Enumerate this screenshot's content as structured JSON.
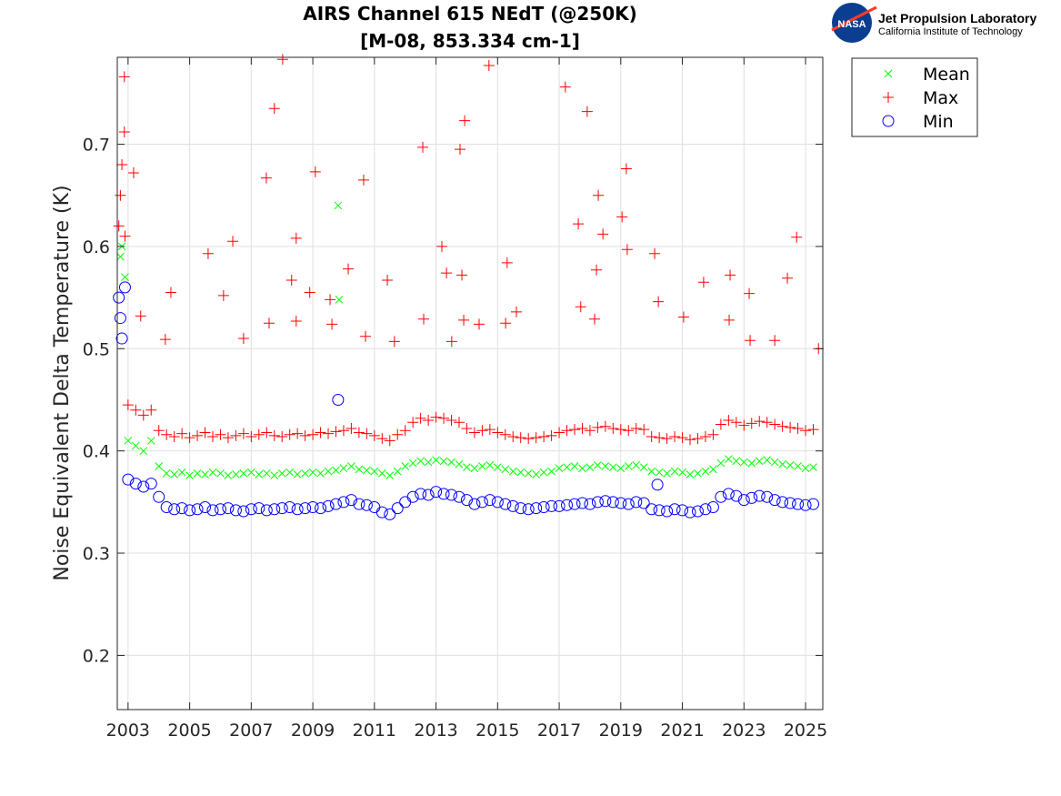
{
  "logo": {
    "org": "Jet Propulsion Laboratory",
    "sub": "California Institute of Technology",
    "badge": "NASA"
  },
  "chart_data": {
    "type": "scatter",
    "title": [
      "AIRS Channel 615 NEdT (@250K)",
      "[M-08, 853.334 cm-1]"
    ],
    "xlabel": "",
    "ylabel": "Noise Equivalent Delta Temperature (K)",
    "xlim": [
      2002.65,
      2025.56
    ],
    "ylim": [
      0.147,
      0.785
    ],
    "xticks": [
      2003,
      2005,
      2007,
      2009,
      2011,
      2013,
      2015,
      2017,
      2019,
      2021,
      2023,
      2025
    ],
    "yticks": [
      0.2,
      0.3,
      0.4,
      0.5,
      0.6,
      0.7
    ],
    "ytick_labels": [
      "0.2",
      "0.3",
      "0.4",
      "0.5",
      "0.6",
      "0.7"
    ],
    "grid": true,
    "legend": "outside-top-right",
    "x": [
      2002.75,
      2003.0,
      2003.25,
      2003.5,
      2003.75,
      2004.0,
      2004.25,
      2004.5,
      2004.75,
      2005.0,
      2005.25,
      2005.5,
      2005.75,
      2006.0,
      2006.25,
      2006.5,
      2006.75,
      2007.0,
      2007.25,
      2007.5,
      2007.75,
      2008.0,
      2008.25,
      2008.5,
      2008.75,
      2009.0,
      2009.25,
      2009.5,
      2009.75,
      2010.0,
      2010.25,
      2010.5,
      2010.75,
      2011.0,
      2011.25,
      2011.5,
      2011.75,
      2012.0,
      2012.25,
      2012.5,
      2012.75,
      2013.0,
      2013.25,
      2013.5,
      2013.75,
      2014.0,
      2014.25,
      2014.5,
      2014.75,
      2015.0,
      2015.25,
      2015.5,
      2015.75,
      2016.0,
      2016.25,
      2016.5,
      2016.75,
      2017.0,
      2017.25,
      2017.5,
      2017.75,
      2018.0,
      2018.25,
      2018.5,
      2018.75,
      2019.0,
      2019.25,
      2019.5,
      2019.75,
      2020.0,
      2020.25,
      2020.5,
      2020.75,
      2021.0,
      2021.25,
      2021.5,
      2021.75,
      2022.0,
      2022.25,
      2022.5,
      2022.75,
      2023.0,
      2023.25,
      2023.5,
      2023.75,
      2024.0,
      2024.25,
      2024.5,
      2024.75,
      2025.0,
      2025.25
    ],
    "series": [
      {
        "name": "Mean",
        "marker": "x",
        "color": "#00ff00",
        "values": [
          0.59,
          0.41,
          0.405,
          0.4,
          0.41,
          0.385,
          0.378,
          0.377,
          0.379,
          0.376,
          0.378,
          0.377,
          0.379,
          0.378,
          0.376,
          0.377,
          0.378,
          0.379,
          0.377,
          0.378,
          0.376,
          0.378,
          0.379,
          0.377,
          0.378,
          0.379,
          0.378,
          0.38,
          0.381,
          0.383,
          0.385,
          0.382,
          0.381,
          0.38,
          0.378,
          0.376,
          0.38,
          0.385,
          0.388,
          0.39,
          0.389,
          0.391,
          0.39,
          0.389,
          0.387,
          0.384,
          0.383,
          0.385,
          0.386,
          0.384,
          0.382,
          0.38,
          0.379,
          0.378,
          0.377,
          0.379,
          0.38,
          0.383,
          0.384,
          0.385,
          0.383,
          0.384,
          0.386,
          0.385,
          0.384,
          0.383,
          0.385,
          0.386,
          0.384,
          0.38,
          0.379,
          0.378,
          0.38,
          0.379,
          0.377,
          0.378,
          0.38,
          0.382,
          0.388,
          0.392,
          0.39,
          0.389,
          0.388,
          0.39,
          0.391,
          0.389,
          0.387,
          0.386,
          0.385,
          0.383,
          0.384
        ],
        "extra_points": [
          [
            2002.8,
            0.6
          ],
          [
            2002.9,
            0.57
          ],
          [
            2009.82,
            0.64
          ],
          [
            2009.85,
            0.548
          ]
        ]
      },
      {
        "name": "Max",
        "marker": "+",
        "color": "#ff0000",
        "values": [
          0.65,
          0.445,
          0.44,
          0.435,
          0.44,
          0.42,
          0.416,
          0.414,
          0.417,
          0.413,
          0.415,
          0.418,
          0.414,
          0.416,
          0.413,
          0.415,
          0.417,
          0.414,
          0.416,
          0.418,
          0.415,
          0.414,
          0.416,
          0.417,
          0.415,
          0.416,
          0.418,
          0.417,
          0.419,
          0.42,
          0.422,
          0.418,
          0.417,
          0.415,
          0.412,
          0.41,
          0.416,
          0.42,
          0.428,
          0.432,
          0.43,
          0.433,
          0.432,
          0.43,
          0.428,
          0.422,
          0.418,
          0.42,
          0.421,
          0.418,
          0.416,
          0.414,
          0.413,
          0.412,
          0.413,
          0.414,
          0.415,
          0.418,
          0.42,
          0.421,
          0.422,
          0.42,
          0.423,
          0.424,
          0.422,
          0.421,
          0.42,
          0.422,
          0.421,
          0.414,
          0.413,
          0.412,
          0.414,
          0.413,
          0.411,
          0.412,
          0.414,
          0.416,
          0.426,
          0.43,
          0.428,
          0.425,
          0.427,
          0.429,
          0.428,
          0.426,
          0.424,
          0.423,
          0.422,
          0.42,
          0.421
        ],
        "extra_points": [
          [
            2002.7,
            0.62
          ],
          [
            2002.8,
            0.68
          ],
          [
            2002.9,
            0.61
          ],
          [
            2002.88,
            0.766
          ],
          [
            2002.88,
            0.712
          ],
          [
            2003.18,
            0.672
          ],
          [
            2003.41,
            0.532
          ],
          [
            2004.39,
            0.555
          ],
          [
            2004.21,
            0.509
          ],
          [
            2005.6,
            0.593
          ],
          [
            2006.1,
            0.552
          ],
          [
            2006.4,
            0.605
          ],
          [
            2006.75,
            0.51
          ],
          [
            2007.49,
            0.667
          ],
          [
            2007.75,
            0.735
          ],
          [
            2008.02,
            0.783
          ],
          [
            2007.58,
            0.525
          ],
          [
            2008.46,
            0.608
          ],
          [
            2008.31,
            0.567
          ],
          [
            2008.46,
            0.527
          ],
          [
            2008.9,
            0.555
          ],
          [
            2009.08,
            0.673
          ],
          [
            2009.56,
            0.548
          ],
          [
            2009.62,
            0.524
          ],
          [
            2010.15,
            0.578
          ],
          [
            2010.65,
            0.665
          ],
          [
            2010.71,
            0.512
          ],
          [
            2011.42,
            0.567
          ],
          [
            2011.65,
            0.507
          ],
          [
            2012.6,
            0.529
          ],
          [
            2012.57,
            0.697
          ],
          [
            2013.19,
            0.6
          ],
          [
            2013.34,
            0.574
          ],
          [
            2013.51,
            0.507
          ],
          [
            2013.78,
            0.695
          ],
          [
            2013.93,
            0.723
          ],
          [
            2013.84,
            0.572
          ],
          [
            2013.9,
            0.528
          ],
          [
            2014.4,
            0.524
          ],
          [
            2014.72,
            0.777
          ],
          [
            2015.31,
            0.584
          ],
          [
            2015.61,
            0.536
          ],
          [
            2015.26,
            0.525
          ],
          [
            2017.2,
            0.756
          ],
          [
            2017.62,
            0.622
          ],
          [
            2017.7,
            0.541
          ],
          [
            2017.91,
            0.732
          ],
          [
            2018.27,
            0.65
          ],
          [
            2018.21,
            0.577
          ],
          [
            2018.42,
            0.612
          ],
          [
            2018.15,
            0.529
          ],
          [
            2019.04,
            0.629
          ],
          [
            2019.18,
            0.676
          ],
          [
            2019.21,
            0.597
          ],
          [
            2020.1,
            0.593
          ],
          [
            2020.22,
            0.546
          ],
          [
            2021.04,
            0.531
          ],
          [
            2021.69,
            0.565
          ],
          [
            2022.55,
            0.572
          ],
          [
            2022.52,
            0.528
          ],
          [
            2023.17,
            0.554
          ],
          [
            2023.2,
            0.508
          ],
          [
            2024.0,
            0.508
          ],
          [
            2024.41,
            0.569
          ],
          [
            2024.71,
            0.609
          ],
          [
            2025.42,
            0.5
          ]
        ]
      },
      {
        "name": "Min",
        "marker": "o",
        "color": "#0000ff",
        "values": [
          0.53,
          0.372,
          0.368,
          0.365,
          0.368,
          0.355,
          0.345,
          0.343,
          0.344,
          0.342,
          0.343,
          0.345,
          0.342,
          0.343,
          0.344,
          0.342,
          0.341,
          0.343,
          0.344,
          0.342,
          0.343,
          0.344,
          0.345,
          0.343,
          0.344,
          0.345,
          0.344,
          0.346,
          0.348,
          0.35,
          0.352,
          0.348,
          0.347,
          0.345,
          0.34,
          0.338,
          0.344,
          0.35,
          0.355,
          0.358,
          0.357,
          0.36,
          0.358,
          0.357,
          0.355,
          0.352,
          0.348,
          0.35,
          0.352,
          0.35,
          0.348,
          0.346,
          0.344,
          0.343,
          0.344,
          0.345,
          0.346,
          0.346,
          0.347,
          0.348,
          0.349,
          0.348,
          0.35,
          0.351,
          0.35,
          0.349,
          0.348,
          0.35,
          0.349,
          0.343,
          0.342,
          0.341,
          0.343,
          0.342,
          0.34,
          0.341,
          0.343,
          0.345,
          0.355,
          0.358,
          0.356,
          0.352,
          0.354,
          0.356,
          0.355,
          0.352,
          0.35,
          0.349,
          0.348,
          0.347,
          0.348
        ],
        "extra_points": [
          [
            2002.7,
            0.55
          ],
          [
            2002.8,
            0.51
          ],
          [
            2002.9,
            0.56
          ],
          [
            2009.82,
            0.45
          ],
          [
            2020.19,
            0.367
          ]
        ]
      }
    ]
  }
}
